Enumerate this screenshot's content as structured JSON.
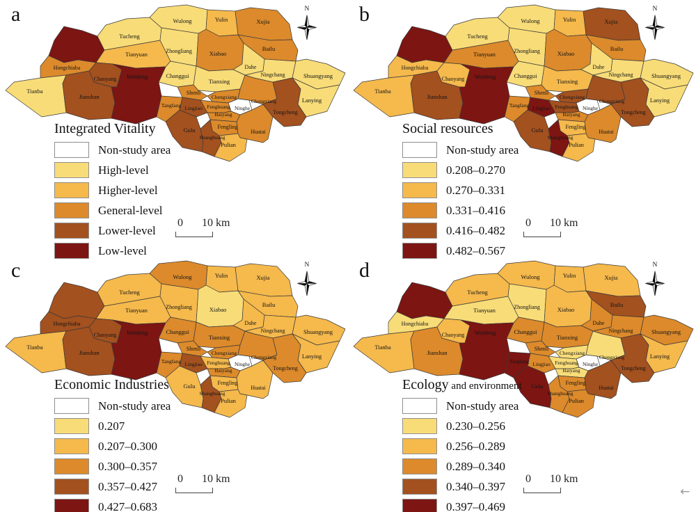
{
  "compass_label": "N",
  "corner_arrow": "←",
  "palette": {
    "c0": "#FFFFFF",
    "c1": "#F8DC78",
    "c2": "#F5B94C",
    "c3": "#DC8A2B",
    "c4": "#A3511F",
    "c5": "#7D1512"
  },
  "region_names": {
    "blob_nw": "",
    "tucheng": "Tucheng",
    "wulong": "Wulong",
    "yulin": "Yulin",
    "xujia": "Xujia",
    "tianyuan": "Tianyuan",
    "zhongliang": "Zhongliang",
    "xiabao": "Xiabao",
    "bailu": "Bailu",
    "dahe": "Dahe",
    "hongchiaba": "Hongchiaba",
    "changgui": "Changgui",
    "ningchang": "Ningchang",
    "shuangyang": "Shuangyang",
    "tianba": "Tianba",
    "jianshan": "Jianshan",
    "chaoyang": "Chaoyang",
    "wenfeng": "Wenfeng",
    "tianxing": "Tianxing",
    "lanying": "Lanying",
    "shenli": "Shenli",
    "chengxiang_w": "Chengxiang",
    "ninghe": "Ninghe",
    "chengxiang_e": "Chengxiang",
    "tangfang": "Tangfang",
    "lingjiao": "Lingjiao",
    "fenghuang": "Fenghuang",
    "baiyang": "Baiyang",
    "tongcheng": "Tongcheng",
    "gulu": "Gulu",
    "fengling": "Fengling",
    "huatai": "Huatai",
    "shanghuang": "Shanghuang",
    "pulian": "Pulian"
  },
  "panels": [
    {
      "letter": "a",
      "legend": {
        "title": "Integrated Vitality",
        "title_suffix": "",
        "items": [
          {
            "level": "c0",
            "label": "Non-study area"
          },
          {
            "level": "c1",
            "label": "High-level"
          },
          {
            "level": "c2",
            "label": "Higher-level"
          },
          {
            "level": "c3",
            "label": "General-level"
          },
          {
            "level": "c4",
            "label": "Lower-level"
          },
          {
            "level": "c5",
            "label": "Low-level"
          }
        ]
      },
      "scale": {
        "start": "0",
        "end": "10",
        "unit": "km"
      },
      "levels": {
        "blob_nw": "c5",
        "tucheng": "c1",
        "wulong": "c1",
        "yulin": "c2",
        "xujia": "c3",
        "tianyuan": "c2",
        "zhongliang": "c1",
        "xiabao": "c3",
        "bailu": "c3",
        "dahe": "c1",
        "hongchiaba": "c3",
        "changgui": "c1",
        "ningchang": "c1",
        "shuangyang": "c1",
        "tianba": "c1",
        "jianshan": "c4",
        "chaoyang": "c4",
        "wenfeng": "c5",
        "tianxing": "c1",
        "lanying": "c1",
        "shenli": "c3",
        "chengxiang_w": "c3",
        "ninghe": "c0",
        "chengxiang_e": "c3",
        "tangfang": "c3",
        "lingjiao": "c4",
        "fenghuang": "c3",
        "baiyang": "c3",
        "tongcheng": "c4",
        "gulu": "c4",
        "fengling": "c3",
        "huatai": "c3",
        "shanghuang": "c4",
        "pulian": "c2"
      }
    },
    {
      "letter": "b",
      "legend": {
        "title": "Social resources",
        "title_suffix": "",
        "items": [
          {
            "level": "c0",
            "label": "Non-study area"
          },
          {
            "level": "c1",
            "label": "0.208–0.270"
          },
          {
            "level": "c2",
            "label": "0.270–0.331"
          },
          {
            "level": "c3",
            "label": "0.331–0.416"
          },
          {
            "level": "c4",
            "label": "0.416–0.482"
          },
          {
            "level": "c5",
            "label": "0.482–0.567"
          }
        ]
      },
      "scale": {
        "start": "0",
        "end": "10",
        "unit": "km"
      },
      "levels": {
        "blob_nw": "c5",
        "tucheng": "c1",
        "wulong": "c1",
        "yulin": "c2",
        "xujia": "c4",
        "tianyuan": "c3",
        "zhongliang": "c1",
        "xiabao": "c3",
        "bailu": "c3",
        "dahe": "c1",
        "hongchiaba": "c2",
        "changgui": "c1",
        "ningchang": "c1",
        "shuangyang": "c1",
        "tianba": "c2",
        "jianshan": "c4",
        "chaoyang": "c2",
        "wenfeng": "c5",
        "tianxing": "c2",
        "lanying": "c1",
        "shenli": "c3",
        "chengxiang_w": "c4",
        "ninghe": "c0",
        "chengxiang_e": "c4",
        "tangfang": "c3",
        "lingjiao": "c5",
        "fenghuang": "c4",
        "baiyang": "c3",
        "tongcheng": "c4",
        "gulu": "c4",
        "fengling": "c2",
        "huatai": "c3",
        "shanghuang": "c5",
        "pulian": "c2"
      }
    },
    {
      "letter": "c",
      "legend": {
        "title": "Economic Industries",
        "title_suffix": "",
        "items": [
          {
            "level": "c0",
            "label": "Non-study area"
          },
          {
            "level": "c1",
            "label": "0.207"
          },
          {
            "level": "c2",
            "label": "0.207–0.300"
          },
          {
            "level": "c3",
            "label": "0.300–0.357"
          },
          {
            "level": "c4",
            "label": "0.357–0.427"
          },
          {
            "level": "c5",
            "label": "0.427–0.683"
          }
        ]
      },
      "scale": {
        "start": "0",
        "end": "10",
        "unit": "km"
      },
      "levels": {
        "blob_nw": "c4",
        "tucheng": "c2",
        "wulong": "c3",
        "yulin": "c2",
        "xujia": "c2",
        "tianyuan": "c2",
        "zhongliang": "c2",
        "xiabao": "c1",
        "bailu": "c2",
        "dahe": "c2",
        "hongchiaba": "c4",
        "changgui": "c3",
        "ningchang": "c2",
        "shuangyang": "c2",
        "tianba": "c2",
        "jianshan": "c4",
        "chaoyang": "c4",
        "wenfeng": "c5",
        "tianxing": "c3",
        "lanying": "c2",
        "shenli": "c3",
        "chengxiang_w": "c3",
        "ninghe": "c0",
        "chengxiang_e": "c3",
        "tangfang": "c3",
        "lingjiao": "c4",
        "fenghuang": "c2",
        "baiyang": "c3",
        "tongcheng": "c3",
        "gulu": "c2",
        "fengling": "c2",
        "huatai": "c2",
        "shanghuang": "c4",
        "pulian": "c2"
      }
    },
    {
      "letter": "d",
      "legend": {
        "title": "Ecology",
        "title_suffix": " and environment",
        "items": [
          {
            "level": "c0",
            "label": "Non-study area"
          },
          {
            "level": "c1",
            "label": "0.230–0.256"
          },
          {
            "level": "c2",
            "label": "0.256–0.289"
          },
          {
            "level": "c3",
            "label": "0.289–0.340"
          },
          {
            "level": "c4",
            "label": "0.340–0.397"
          },
          {
            "level": "c5",
            "label": "0.397–0.469"
          }
        ]
      },
      "scale": {
        "start": "0",
        "end": "10",
        "unit": "km"
      },
      "levels": {
        "blob_nw": "c5",
        "tucheng": "c2",
        "wulong": "c2",
        "yulin": "c2",
        "xujia": "c2",
        "tianyuan": "c1",
        "zhongliang": "c1",
        "xiabao": "c2",
        "bailu": "c4",
        "dahe": "c3",
        "hongchiaba": "c1",
        "changgui": "c3",
        "ningchang": "c3",
        "shuangyang": "c3",
        "tianba": "c2",
        "jianshan": "c3",
        "chaoyang": "c2",
        "wenfeng": "c5",
        "tianxing": "c3",
        "lanying": "c2",
        "shenli": "c3",
        "chengxiang_w": "c1",
        "ninghe": "c0",
        "chengxiang_e": "c1",
        "tangfang": "c5",
        "lingjiao": "c3",
        "fenghuang": "c1",
        "baiyang": "c1",
        "tongcheng": "c4",
        "gulu": "c5",
        "fengling": "c3",
        "huatai": "c4",
        "shanghuang": "c3",
        "pulian": "c3"
      }
    }
  ]
}
